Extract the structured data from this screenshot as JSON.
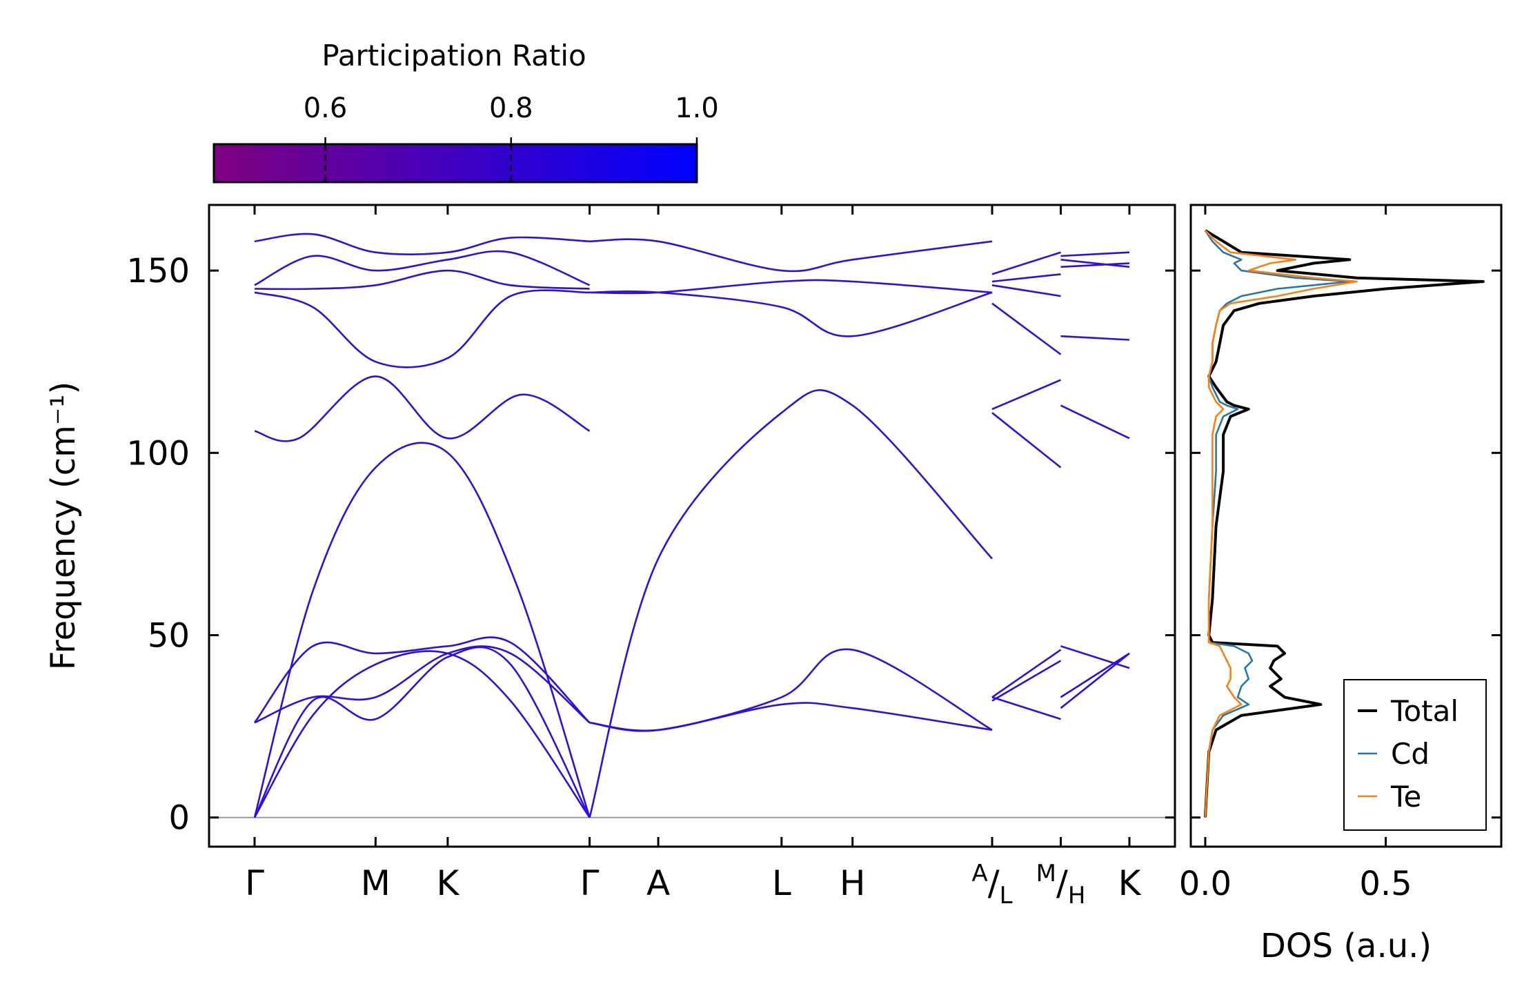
{
  "chart_data": {
    "type": "line",
    "colorbar": {
      "title": "Participation Ratio",
      "ticks": [
        "0.6",
        "0.8",
        "1.0"
      ],
      "tick_values": [
        0.6,
        0.8,
        1.0
      ],
      "range": [
        0.48,
        1.0
      ],
      "color_low": "#800080",
      "color_high": "#0000ff"
    },
    "band_plot": {
      "ylabel": "Frequency (cm⁻¹)",
      "ylim": [
        -8,
        168
      ],
      "yticks": [
        0,
        50,
        100,
        150
      ],
      "band_color": "#2a10e6",
      "kpath": {
        "labels": [
          "Γ",
          "M",
          "K",
          "Γ",
          "A",
          "L",
          "H",
          "A/L",
          "M/H",
          "K"
        ],
        "positions": [
          0,
          1.04,
          1.66,
          2.88,
          3.47,
          4.53,
          5.14,
          6.34,
          6.93,
          7.52
        ]
      },
      "segments": [
        {
          "from": 0,
          "to": 2.88,
          "branches": [
            {
              "x": [
                0,
                0.5,
                1.04,
                1.66,
                2.25,
                2.88
              ],
              "y": [
                0,
                62,
                96,
                100,
                64,
                0
              ]
            },
            {
              "x": [
                0,
                0.5,
                1.04,
                1.66,
                2.2,
                2.88
              ],
              "y": [
                0,
                32,
                27,
                44,
                42,
                0
              ]
            },
            {
              "x": [
                0,
                0.5,
                1.04,
                1.66,
                2.2,
                2.88
              ],
              "y": [
                0,
                28,
                42,
                45,
                32,
                0
              ]
            },
            {
              "x": [
                0,
                0.5,
                1.04,
                1.66,
                2.2,
                2.88
              ],
              "y": [
                26,
                33,
                33,
                45,
                45,
                26
              ]
            },
            {
              "x": [
                0,
                0.5,
                1.04,
                1.66,
                2.2,
                2.88
              ],
              "y": [
                26,
                47,
                45,
                47,
                48,
                26
              ]
            },
            {
              "x": [
                0,
                0.38,
                1.04,
                1.66,
                2.3,
                2.88
              ],
              "y": [
                106,
                104,
                121,
                104,
                116,
                106
              ]
            },
            {
              "x": [
                0,
                0.5,
                1.04,
                1.66,
                2.2,
                2.88
              ],
              "y": [
                144,
                140,
                125,
                126,
                143,
                144
              ]
            },
            {
              "x": [
                0,
                0.5,
                1.04,
                1.66,
                2.2,
                2.88
              ],
              "y": [
                145,
                145,
                146,
                150,
                146,
                145
              ]
            },
            {
              "x": [
                0,
                0.5,
                1.04,
                1.66,
                2.2,
                2.88
              ],
              "y": [
                146,
                154,
                150,
                153,
                155,
                146
              ]
            },
            {
              "x": [
                0,
                0.5,
                1.04,
                1.66,
                2.2,
                2.88
              ],
              "y": [
                158,
                160,
                155,
                155,
                159,
                158
              ]
            }
          ]
        },
        {
          "from": 2.88,
          "to": 6.34,
          "branches": [
            {
              "x": [
                2.88,
                3.47,
                4.53,
                5.14,
                6.34
              ],
              "y": [
                0,
                71,
                111,
                113,
                71
              ]
            },
            {
              "x": [
                2.88,
                3.47,
                4.53,
                5.14,
                6.34
              ],
              "y": [
                26,
                24,
                33,
                46,
                24
              ]
            },
            {
              "x": [
                2.88,
                3.47,
                4.53,
                5.14,
                6.34
              ],
              "y": [
                26,
                24,
                31,
                30,
                24
              ]
            },
            {
              "x": [
                2.88,
                3.47,
                4.53,
                5.14,
                6.34
              ],
              "y": [
                144,
                144,
                140,
                132,
                144
              ]
            },
            {
              "x": [
                2.88,
                3.47,
                4.53,
                5.14,
                6.34
              ],
              "y": [
                144,
                144,
                147,
                147,
                144
              ]
            },
            {
              "x": [
                2.88,
                3.47,
                4.53,
                5.14,
                6.34
              ],
              "y": [
                158,
                158,
                150,
                153,
                158
              ]
            }
          ]
        },
        {
          "from": 6.34,
          "to": 6.93,
          "branches": [
            {
              "x": [
                6.34,
                6.93
              ],
              "y": [
                112,
                120
              ]
            },
            {
              "x": [
                6.34,
                6.93
              ],
              "y": [
                111,
                96
              ]
            },
            {
              "x": [
                6.34,
                6.93
              ],
              "y": [
                33,
                46
              ]
            },
            {
              "x": [
                6.34,
                6.93
              ],
              "y": [
                32,
                43
              ]
            },
            {
              "x": [
                6.34,
                6.93
              ],
              "y": [
                33,
                27
              ]
            },
            {
              "x": [
                6.34,
                6.93
              ],
              "y": [
                141,
                127
              ]
            },
            {
              "x": [
                6.34,
                6.93
              ],
              "y": [
                146,
                143
              ]
            },
            {
              "x": [
                6.34,
                6.93
              ],
              "y": [
                147,
                149
              ]
            },
            {
              "x": [
                6.34,
                6.93
              ],
              "y": [
                149,
                155
              ]
            }
          ]
        },
        {
          "from": 6.93,
          "to": 7.52,
          "branches": [
            {
              "x": [
                6.93,
                7.52
              ],
              "y": [
                113,
                104
              ]
            },
            {
              "x": [
                6.93,
                7.52
              ],
              "y": [
                132,
                131
              ]
            },
            {
              "x": [
                6.93,
                7.52
              ],
              "y": [
                30,
                45
              ]
            },
            {
              "x": [
                6.93,
                7.52
              ],
              "y": [
                47,
                41
              ]
            },
            {
              "x": [
                6.93,
                7.52
              ],
              "y": [
                33,
                45
              ]
            },
            {
              "x": [
                6.93,
                7.52
              ],
              "y": [
                154,
                155
              ]
            },
            {
              "x": [
                6.93,
                7.52
              ],
              "y": [
                153,
                151
              ]
            },
            {
              "x": [
                6.93,
                7.52
              ],
              "y": [
                151,
                152
              ]
            }
          ]
        }
      ]
    },
    "dos_plot": {
      "xlabel": "DOS (a.u.)",
      "xlim": [
        -0.04,
        0.82
      ],
      "xticks": [
        "0.0",
        "0.5"
      ],
      "xtick_values": [
        0.0,
        0.5
      ],
      "legend": {
        "placement": "lower-right"
      },
      "series": [
        {
          "name": "Total",
          "color": "#000000",
          "freq": [
            0,
            18,
            24,
            28,
            31,
            33,
            36,
            38,
            41,
            43,
            45,
            47,
            48,
            50,
            60,
            80,
            95,
            105,
            110,
            112,
            113,
            114,
            118,
            121,
            125,
            130,
            135,
            139,
            141,
            143,
            145,
            147,
            148,
            150,
            152,
            153,
            155,
            158,
            161
          ],
          "dos": [
            0.0,
            0.01,
            0.03,
            0.1,
            0.32,
            0.22,
            0.18,
            0.21,
            0.18,
            0.19,
            0.22,
            0.2,
            0.02,
            0.01,
            0.02,
            0.03,
            0.05,
            0.05,
            0.07,
            0.12,
            0.08,
            0.06,
            0.03,
            0.01,
            0.03,
            0.04,
            0.05,
            0.08,
            0.15,
            0.3,
            0.5,
            0.77,
            0.42,
            0.2,
            0.3,
            0.4,
            0.1,
            0.05,
            0.0
          ]
        },
        {
          "name": "Cd",
          "color": "#1f77b4",
          "freq": [
            0,
            18,
            24,
            28,
            31,
            33,
            36,
            38,
            41,
            43,
            45,
            47,
            48,
            50,
            60,
            80,
            95,
            105,
            110,
            112,
            113,
            114,
            118,
            121,
            125,
            130,
            135,
            139,
            141,
            143,
            145,
            147,
            148,
            150,
            152,
            153,
            155,
            158,
            161
          ],
          "dos": [
            0.0,
            0.01,
            0.02,
            0.05,
            0.12,
            0.09,
            0.1,
            0.12,
            0.11,
            0.13,
            0.12,
            0.08,
            0.01,
            0.01,
            0.01,
            0.02,
            0.03,
            0.03,
            0.05,
            0.09,
            0.06,
            0.04,
            0.02,
            0.01,
            0.02,
            0.02,
            0.03,
            0.04,
            0.06,
            0.1,
            0.2,
            0.4,
            0.25,
            0.1,
            0.08,
            0.1,
            0.05,
            0.02,
            0.0
          ]
        },
        {
          "name": "Te",
          "color": "#ff7f0e",
          "freq": [
            0,
            18,
            24,
            28,
            31,
            33,
            36,
            38,
            41,
            43,
            45,
            47,
            48,
            50,
            60,
            80,
            95,
            105,
            110,
            112,
            113,
            114,
            118,
            121,
            125,
            130,
            135,
            139,
            141,
            143,
            145,
            147,
            148,
            150,
            152,
            153,
            155,
            158,
            161
          ],
          "dos": [
            0.0,
            0.01,
            0.02,
            0.04,
            0.1,
            0.08,
            0.06,
            0.07,
            0.07,
            0.06,
            0.05,
            0.04,
            0.01,
            0.01,
            0.01,
            0.02,
            0.02,
            0.02,
            0.03,
            0.05,
            0.04,
            0.03,
            0.01,
            0.01,
            0.02,
            0.02,
            0.03,
            0.04,
            0.07,
            0.2,
            0.3,
            0.42,
            0.3,
            0.12,
            0.18,
            0.25,
            0.07,
            0.03,
            0.0
          ]
        }
      ]
    }
  }
}
